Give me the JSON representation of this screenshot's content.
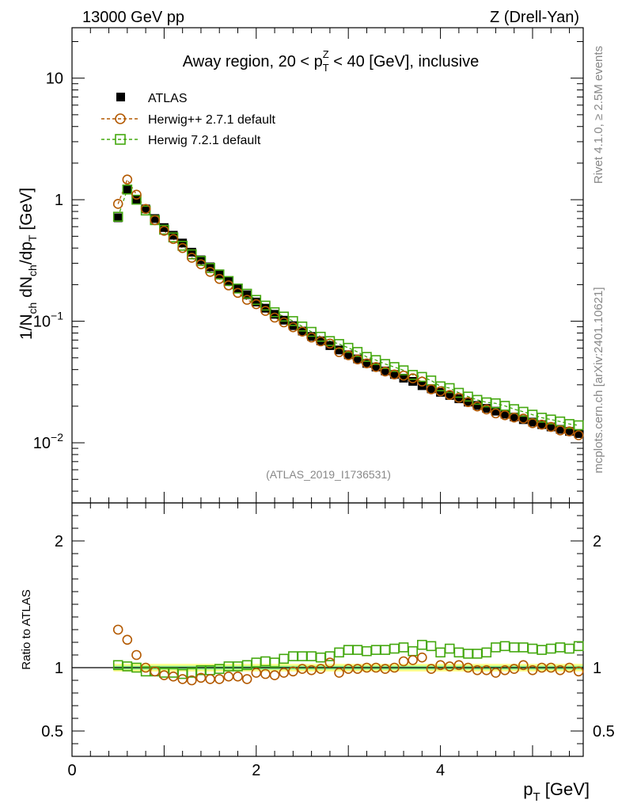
{
  "header": {
    "left": "13000 GeV pp",
    "right": "Z (Drell-Yan)"
  },
  "side_labels": {
    "rivet": "Rivet 4.1.0, ≥ 2.5M events",
    "mcplots": "mcplots.cern.ch [arXiv:2401.10621]"
  },
  "main_title": {
    "prefix": "Away region, 20 < p",
    "sup": "Z",
    "sub": "T",
    "suffix": " < 40 [GeV], inclusive"
  },
  "analysis_id": "(ATLAS_2019_I1736531)",
  "ylabel_main": {
    "a": "1/N",
    "a_sub": "ch",
    "b": " dN",
    "b_sub": "ch",
    "c": "/dp",
    "c_sub": "T",
    "d": " [GeV]"
  },
  "ylabel_ratio": "Ratio to ATLAS",
  "xlabel": {
    "p": "p",
    "sub": "T",
    "unit": " [GeV]"
  },
  "top_ticks": [
    {
      "label": "10",
      "exp": "",
      "value": 10
    },
    {
      "label": "1",
      "exp": "",
      "value": 1
    },
    {
      "label": "10",
      "exp": "−1",
      "value": 0.1
    },
    {
      "label": "10",
      "exp": "−2",
      "value": 0.01
    }
  ],
  "ratio_ticks": [
    {
      "label": "2",
      "value": 2
    },
    {
      "label": "1",
      "value": 1
    },
    {
      "label": "0.5",
      "value": 0.5
    }
  ],
  "x_ticks": [
    {
      "label": "0",
      "value": 0
    },
    {
      "label": "2",
      "value": 2
    },
    {
      "label": "4",
      "value": 4
    }
  ],
  "legend": [
    {
      "name": "ATLAS",
      "marker": "square-filled",
      "color": "#000000"
    },
    {
      "name": "Herwig++ 2.7.1 default",
      "marker": "circle-open",
      "color": "#b35900"
    },
    {
      "name": "Herwig 7.2.1 default",
      "marker": "square-open",
      "color": "#44a80f"
    }
  ],
  "colors": {
    "atlas": "#000000",
    "herwigpp": "#b35900",
    "herwig7": "#44a80f",
    "band_outer": "#ffff88",
    "band_inner": "#88ee88"
  },
  "chart_data": {
    "type": "scatter",
    "title": "Away region, 20 < pT^Z < 40 [GeV], inclusive",
    "xlabel": "pT [GeV]",
    "ylabel": "1/Nch dNch/dpT [GeV]",
    "xlim": [
      0,
      5.55
    ],
    "ylim": [
      0.0032,
      26
    ],
    "yscale": "log",
    "ratio_ylim": [
      0.3,
      2.3
    ],
    "x": [
      0.5,
      0.6,
      0.7,
      0.8,
      0.9,
      1.0,
      1.1,
      1.2,
      1.3,
      1.4,
      1.5,
      1.6,
      1.7,
      1.8,
      1.9,
      2.0,
      2.1,
      2.2,
      2.3,
      2.4,
      2.5,
      2.6,
      2.7,
      2.8,
      2.9,
      3.0,
      3.1,
      3.2,
      3.3,
      3.4,
      3.5,
      3.6,
      3.7,
      3.8,
      3.9,
      4.0,
      4.1,
      4.2,
      4.3,
      4.4,
      4.5,
      4.6,
      4.7,
      4.8,
      4.9,
      5.0,
      5.1,
      5.2,
      5.3,
      5.4,
      5.5
    ],
    "series": [
      {
        "name": "ATLAS",
        "values": [
          0.71,
          1.2,
          1.0,
          0.84,
          0.7,
          0.59,
          0.51,
          0.44,
          0.37,
          0.32,
          0.28,
          0.245,
          0.212,
          0.184,
          0.165,
          0.144,
          0.128,
          0.114,
          0.102,
          0.092,
          0.083,
          0.075,
          0.069,
          0.063,
          0.058,
          0.053,
          0.049,
          0.045,
          0.042,
          0.039,
          0.0365,
          0.034,
          0.032,
          0.0295,
          0.0278,
          0.026,
          0.0245,
          0.023,
          0.0216,
          0.0203,
          0.0192,
          0.0182,
          0.0172,
          0.0163,
          0.0155,
          0.0148,
          0.0141,
          0.0135,
          0.0129,
          0.0124,
          0.0119
        ]
      },
      {
        "name": "Herwig++ 2.7.1 default",
        "ratio": [
          1.3,
          1.22,
          1.1,
          1.0,
          0.97,
          0.94,
          0.93,
          0.91,
          0.9,
          0.92,
          0.91,
          0.91,
          0.93,
          0.93,
          0.91,
          0.96,
          0.95,
          0.94,
          0.96,
          0.97,
          0.99,
          0.98,
          0.99,
          1.04,
          0.96,
          0.99,
          0.99,
          1.0,
          1.0,
          0.99,
          1.0,
          1.05,
          1.06,
          1.08,
          0.99,
          1.02,
          1.01,
          1.02,
          1.0,
          0.98,
          0.98,
          0.96,
          0.98,
          0.99,
          1.02,
          0.98,
          1.0,
          1.0,
          0.98,
          1.0,
          0.97
        ]
      },
      {
        "name": "Herwig 7.2.1 default",
        "ratio": [
          1.02,
          1.01,
          1.0,
          0.97,
          0.97,
          0.96,
          0.96,
          0.95,
          0.96,
          0.98,
          0.98,
          0.99,
          1.01,
          1.01,
          1.02,
          1.04,
          1.05,
          1.04,
          1.07,
          1.09,
          1.09,
          1.09,
          1.08,
          1.09,
          1.12,
          1.14,
          1.14,
          1.13,
          1.14,
          1.14,
          1.15,
          1.16,
          1.13,
          1.18,
          1.17,
          1.12,
          1.15,
          1.12,
          1.11,
          1.11,
          1.12,
          1.16,
          1.17,
          1.16,
          1.16,
          1.15,
          1.14,
          1.15,
          1.16,
          1.15,
          1.17
        ]
      }
    ]
  }
}
